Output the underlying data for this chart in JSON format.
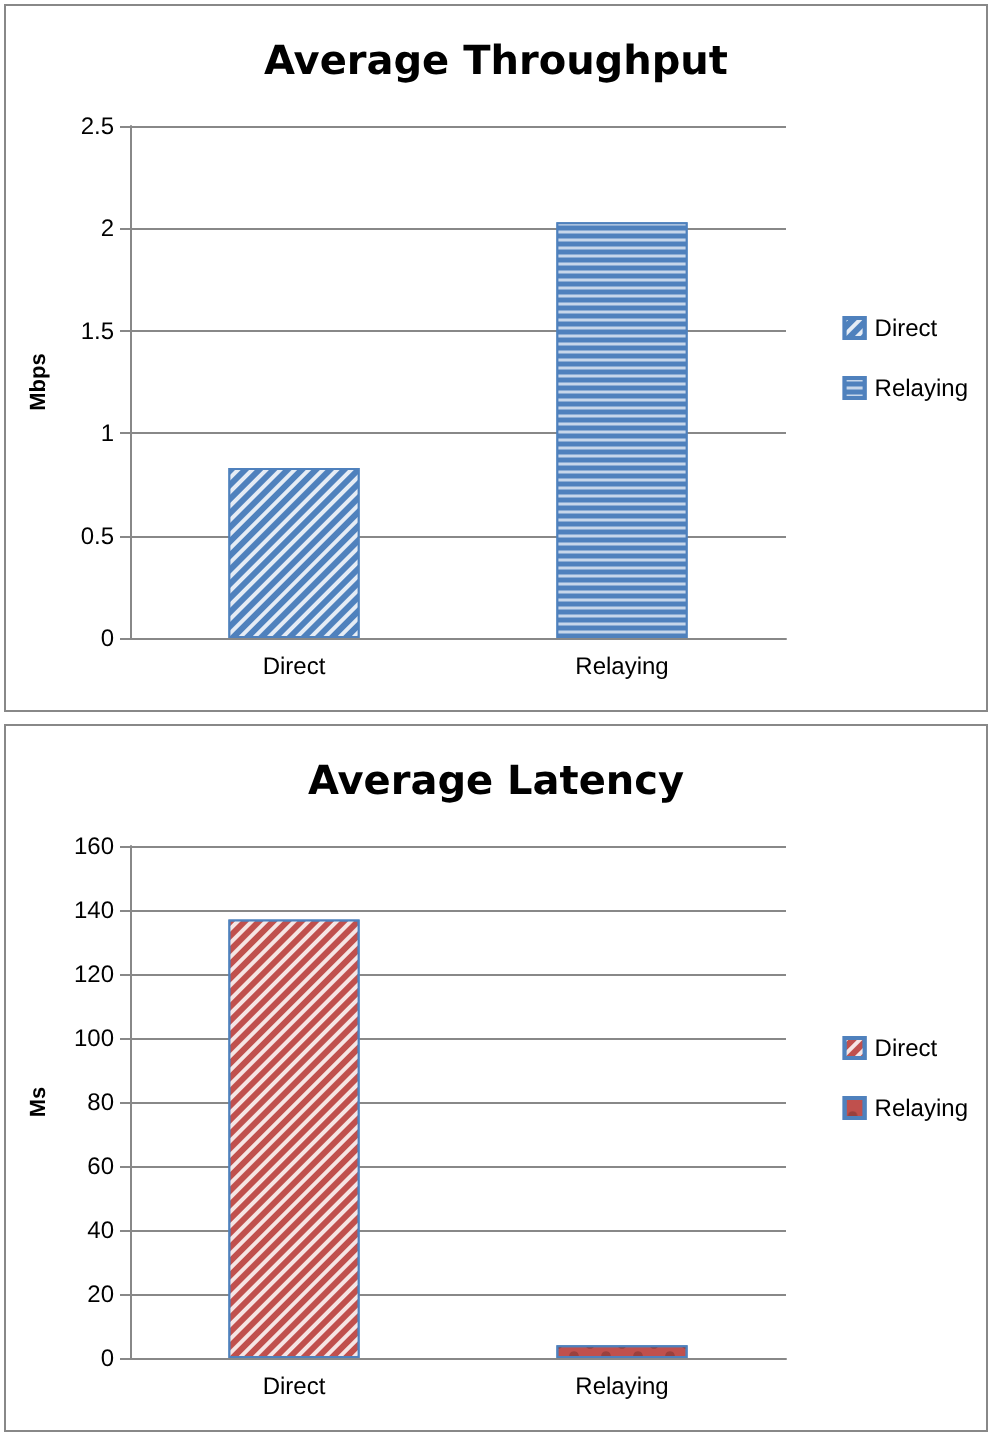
{
  "chart_data": [
    {
      "type": "bar",
      "title": "Average Throughput",
      "ylabel": "Mbps",
      "categories": [
        "Direct",
        "Relaying"
      ],
      "series": [
        {
          "name": "Direct",
          "color": "#4f81bd",
          "values": [
            0.83,
            null
          ]
        },
        {
          "name": "Relaying",
          "color": "#4f81bd",
          "values": [
            null,
            2.03
          ]
        }
      ],
      "ylim": [
        0,
        2.5
      ],
      "yticks": [
        0,
        0.5,
        1,
        1.5,
        2,
        2.5
      ],
      "grid": "y",
      "legend": "right"
    },
    {
      "type": "bar",
      "title": "Average Latency",
      "ylabel": "Ms",
      "categories": [
        "Direct",
        "Relaying"
      ],
      "series": [
        {
          "name": "Direct",
          "color": "#c0504d",
          "values": [
            137,
            null
          ]
        },
        {
          "name": "Relaying",
          "color": "#c0504d",
          "values": [
            null,
            4
          ]
        }
      ],
      "ylim": [
        0,
        160
      ],
      "yticks": [
        0,
        20,
        40,
        60,
        80,
        100,
        120,
        140,
        160
      ],
      "grid": "y",
      "legend": "right"
    }
  ]
}
